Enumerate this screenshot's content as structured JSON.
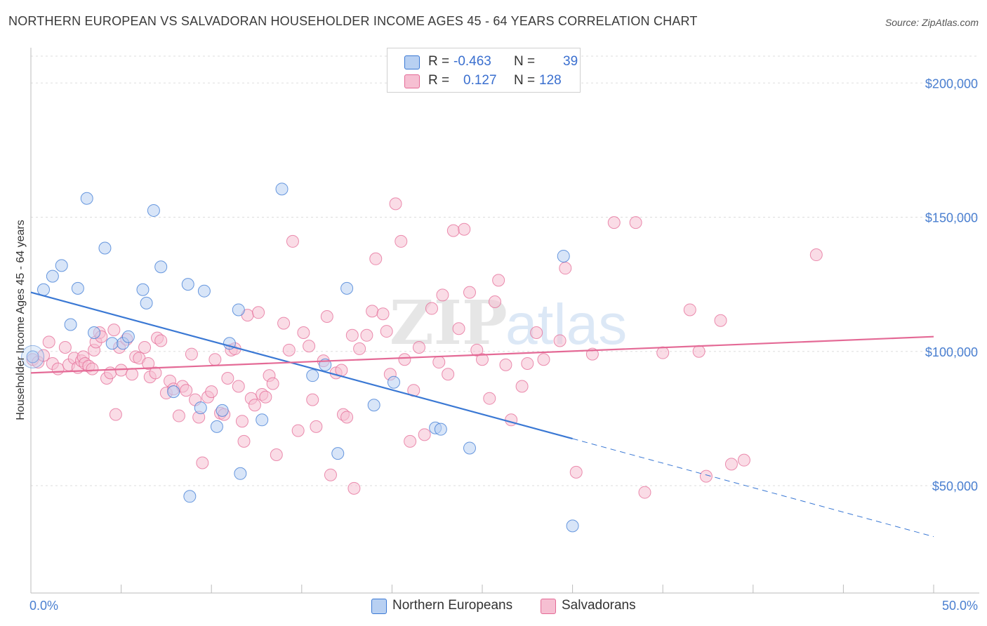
{
  "title": "NORTHERN EUROPEAN VS SALVADORAN HOUSEHOLDER INCOME AGES 45 - 64 YEARS CORRELATION CHART",
  "source": "Source: ZipAtlas.com",
  "colors": {
    "blue": "#3a78d4",
    "blue_fill": "#b8d0f2",
    "pink": "#e46a96",
    "pink_fill": "#f6bfd2",
    "grid": "#dddddd",
    "tick_text": "#4a7fd0"
  },
  "legend": {
    "rows": [
      {
        "r_label": "R =",
        "r_value": "-0.463",
        "n_label": "N =",
        "n_value": "39"
      },
      {
        "r_label": "R =",
        "r_value": "0.127",
        "n_label": "N =",
        "n_value": "128"
      }
    ]
  },
  "bottom_legend": {
    "blue_label": "Northern Europeans",
    "pink_label": "Salvadorans"
  },
  "watermark": {
    "zip": "ZIP",
    "atlas": "atlas"
  },
  "chart_data": {
    "type": "scatter",
    "title": "NORTHERN EUROPEAN VS SALVADORAN HOUSEHOLDER INCOME AGES 45 - 64 YEARS CORRELATION CHART",
    "xlabel": "",
    "ylabel": "Householder Income Ages 45 - 64 years",
    "xlim": [
      0,
      50
    ],
    "ylim": [
      10000,
      210000
    ],
    "x_tick_labels": [
      "0.0%",
      "50.0%"
    ],
    "y_ticks": [
      50000,
      100000,
      150000,
      200000
    ],
    "y_tick_labels": [
      "$50,000",
      "$100,000",
      "$150,000",
      "$200,000"
    ],
    "series": [
      {
        "name": "Northern Europeans",
        "color": "blue",
        "r": -0.463,
        "n": 39,
        "trend": {
          "x0": 0,
          "y0": 122000,
          "x1": 30,
          "y1": 67500,
          "dash_x1": 50,
          "dash_y1": 31000
        },
        "points": [
          [
            0.1,
            98000
          ],
          [
            0.7,
            123000
          ],
          [
            1.2,
            128000
          ],
          [
            1.7,
            132000
          ],
          [
            2.2,
            110000
          ],
          [
            2.6,
            123500
          ],
          [
            3.1,
            157000
          ],
          [
            3.5,
            107000
          ],
          [
            4.1,
            138500
          ],
          [
            4.5,
            103000
          ],
          [
            5.1,
            103000
          ],
          [
            5.4,
            105500
          ],
          [
            6.2,
            123000
          ],
          [
            6.4,
            118000
          ],
          [
            6.8,
            152500
          ],
          [
            7.2,
            131500
          ],
          [
            7.9,
            85000
          ],
          [
            8.7,
            125000
          ],
          [
            8.8,
            46000
          ],
          [
            9.4,
            79000
          ],
          [
            9.6,
            122500
          ],
          [
            10.3,
            72000
          ],
          [
            10.6,
            78000
          ],
          [
            11.0,
            103000
          ],
          [
            11.5,
            115500
          ],
          [
            11.6,
            54500
          ],
          [
            12.8,
            74500
          ],
          [
            13.9,
            160500
          ],
          [
            15.6,
            91000
          ],
          [
            16.3,
            95000
          ],
          [
            17.0,
            62000
          ],
          [
            17.5,
            123500
          ],
          [
            19.0,
            80000
          ],
          [
            20.1,
            88500
          ],
          [
            22.4,
            71500
          ],
          [
            22.7,
            71000
          ],
          [
            24.3,
            64000
          ],
          [
            29.5,
            135500
          ],
          [
            30.0,
            35000
          ]
        ]
      },
      {
        "name": "Salvadorans",
        "color": "pink",
        "r": 0.127,
        "n": 128,
        "trend": {
          "x0": 0,
          "y0": 92000,
          "x1": 50,
          "y1": 105500
        },
        "points": [
          [
            0.1,
            97000
          ],
          [
            0.4,
            96000
          ],
          [
            0.7,
            98500
          ],
          [
            1.0,
            103500
          ],
          [
            1.2,
            95500
          ],
          [
            1.5,
            93500
          ],
          [
            1.9,
            101500
          ],
          [
            2.1,
            95000
          ],
          [
            2.4,
            97500
          ],
          [
            2.6,
            94000
          ],
          [
            2.8,
            96500
          ],
          [
            2.9,
            98000
          ],
          [
            3.0,
            95500
          ],
          [
            3.2,
            94500
          ],
          [
            3.4,
            93500
          ],
          [
            3.5,
            100500
          ],
          [
            3.6,
            103500
          ],
          [
            3.8,
            107000
          ],
          [
            3.9,
            105500
          ],
          [
            4.2,
            90000
          ],
          [
            4.4,
            92000
          ],
          [
            4.6,
            108000
          ],
          [
            4.7,
            76500
          ],
          [
            4.9,
            101500
          ],
          [
            5.0,
            93000
          ],
          [
            5.3,
            104500
          ],
          [
            5.6,
            91500
          ],
          [
            5.8,
            98000
          ],
          [
            6.0,
            97500
          ],
          [
            6.3,
            101500
          ],
          [
            6.5,
            95500
          ],
          [
            6.6,
            90500
          ],
          [
            6.9,
            92000
          ],
          [
            7.0,
            105000
          ],
          [
            7.2,
            104000
          ],
          [
            7.5,
            84500
          ],
          [
            7.7,
            89000
          ],
          [
            7.9,
            86000
          ],
          [
            8.2,
            76000
          ],
          [
            8.4,
            87000
          ],
          [
            8.6,
            85500
          ],
          [
            8.9,
            99000
          ],
          [
            9.1,
            82000
          ],
          [
            9.3,
            75500
          ],
          [
            9.5,
            58500
          ],
          [
            9.8,
            83000
          ],
          [
            10.0,
            85000
          ],
          [
            10.2,
            97000
          ],
          [
            10.5,
            77000
          ],
          [
            10.7,
            76500
          ],
          [
            10.9,
            90000
          ],
          [
            11.1,
            100500
          ],
          [
            11.3,
            101000
          ],
          [
            11.5,
            87000
          ],
          [
            11.7,
            74000
          ],
          [
            11.8,
            66500
          ],
          [
            12.0,
            113500
          ],
          [
            12.2,
            82500
          ],
          [
            12.4,
            80000
          ],
          [
            12.6,
            114500
          ],
          [
            12.8,
            84000
          ],
          [
            13.0,
            83000
          ],
          [
            13.2,
            91000
          ],
          [
            13.4,
            88000
          ],
          [
            13.6,
            61500
          ],
          [
            14.0,
            110500
          ],
          [
            14.3,
            100500
          ],
          [
            14.5,
            141000
          ],
          [
            14.8,
            70500
          ],
          [
            15.1,
            107000
          ],
          [
            15.4,
            102000
          ],
          [
            15.6,
            82000
          ],
          [
            15.8,
            72000
          ],
          [
            16.2,
            96500
          ],
          [
            16.4,
            113000
          ],
          [
            16.6,
            54000
          ],
          [
            16.9,
            92000
          ],
          [
            17.2,
            93000
          ],
          [
            17.3,
            76500
          ],
          [
            17.5,
            75500
          ],
          [
            17.8,
            106000
          ],
          [
            17.9,
            49000
          ],
          [
            18.2,
            101000
          ],
          [
            18.6,
            106000
          ],
          [
            18.9,
            115000
          ],
          [
            19.1,
            134500
          ],
          [
            19.5,
            114000
          ],
          [
            19.7,
            107500
          ],
          [
            19.9,
            91500
          ],
          [
            20.2,
            155000
          ],
          [
            20.5,
            141000
          ],
          [
            20.7,
            97000
          ],
          [
            21.0,
            66500
          ],
          [
            21.2,
            85500
          ],
          [
            21.5,
            101500
          ],
          [
            21.8,
            69000
          ],
          [
            22.2,
            116000
          ],
          [
            22.6,
            96000
          ],
          [
            22.8,
            121000
          ],
          [
            23.1,
            91500
          ],
          [
            23.4,
            145000
          ],
          [
            23.7,
            108500
          ],
          [
            24.0,
            145500
          ],
          [
            24.3,
            122000
          ],
          [
            24.7,
            100500
          ],
          [
            25.0,
            97000
          ],
          [
            25.4,
            82500
          ],
          [
            25.7,
            118500
          ],
          [
            25.9,
            126500
          ],
          [
            26.3,
            95000
          ],
          [
            26.6,
            74500
          ],
          [
            27.2,
            87000
          ],
          [
            27.5,
            95500
          ],
          [
            28.0,
            107000
          ],
          [
            28.4,
            97000
          ],
          [
            29.3,
            104000
          ],
          [
            29.6,
            131000
          ],
          [
            30.2,
            55000
          ],
          [
            31.1,
            99000
          ],
          [
            32.3,
            148000
          ],
          [
            33.5,
            148000
          ],
          [
            34.0,
            47500
          ],
          [
            35.0,
            99500
          ],
          [
            36.5,
            115500
          ],
          [
            37.0,
            100000
          ],
          [
            37.4,
            53500
          ],
          [
            38.2,
            111500
          ],
          [
            38.8,
            58000
          ],
          [
            39.5,
            59500
          ],
          [
            43.5,
            136000
          ]
        ]
      }
    ]
  }
}
